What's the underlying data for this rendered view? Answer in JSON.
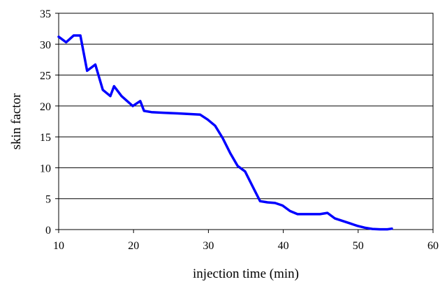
{
  "chart_data": {
    "type": "line",
    "title": "",
    "xlabel": "injection time (min)",
    "ylabel": "skin factor",
    "xlim": [
      10,
      60
    ],
    "ylim": [
      0,
      35
    ],
    "xticks": [
      10,
      20,
      30,
      40,
      50,
      60
    ],
    "yticks": [
      0,
      5,
      10,
      15,
      20,
      25,
      30,
      35
    ],
    "grid": {
      "horizontal": true,
      "vertical": false
    },
    "legend": "none",
    "series": [
      {
        "color": "#0000ff",
        "x": [
          10,
          11,
          12,
          12.9,
          13.8,
          14.9,
          15.9,
          16.9,
          17.4,
          18.4,
          19.9,
          20.9,
          21.4,
          22.4,
          24.0,
          25.9,
          28.9,
          29.9,
          30.9,
          31.9,
          32.9,
          33.9,
          34.9,
          35.9,
          36.9,
          37.9,
          38.9,
          39.9,
          40.9,
          41.9,
          42.9,
          43.9,
          44.9,
          45.9,
          46.9,
          47.9,
          48.9,
          49.9,
          50.9,
          51.9,
          52.9,
          53.9,
          54.5
        ],
        "y": [
          31.2,
          30.3,
          31.4,
          31.4,
          25.7,
          26.7,
          22.6,
          21.6,
          23.2,
          21.6,
          20.0,
          20.8,
          19.2,
          19.0,
          18.9,
          18.8,
          18.6,
          17.8,
          16.8,
          14.8,
          12.4,
          10.3,
          9.4,
          7.0,
          4.6,
          4.4,
          4.3,
          3.9,
          3.0,
          2.5,
          2.5,
          2.5,
          2.5,
          2.7,
          1.8,
          1.4,
          1.0,
          0.6,
          0.3,
          0.1,
          0.05,
          0.05,
          0.15
        ]
      }
    ]
  }
}
